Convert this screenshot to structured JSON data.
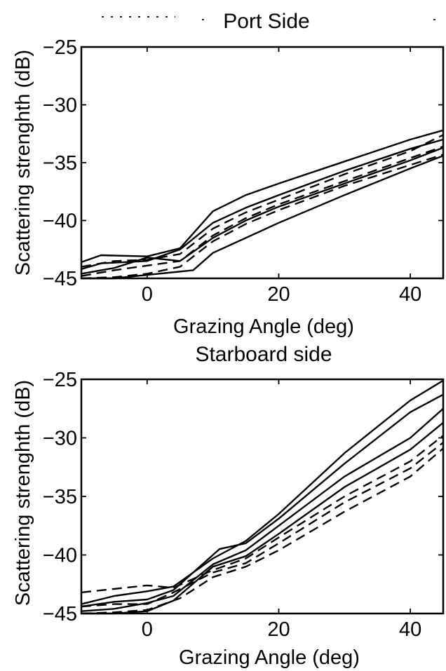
{
  "chart_data": [
    {
      "type": "line",
      "title": "Port Side",
      "xlabel": "Grazing Angle (deg)",
      "ylabel": "Scattering strenghth (dB)",
      "xlim": [
        -10,
        45
      ],
      "ylim": [
        -45,
        -25
      ],
      "xticks": [
        "0",
        "20",
        "40"
      ],
      "yticks": [
        "−25",
        "−30",
        "−35",
        "−40",
        "−45"
      ],
      "xtick_values": [
        0,
        20,
        40
      ],
      "ytick_values": [
        -25,
        -30,
        -35,
        -40,
        -45
      ],
      "grid": false,
      "series": [
        {
          "style": "solid",
          "x": [
            -10,
            -7,
            0,
            5,
            10,
            15,
            20,
            30,
            40,
            45
          ],
          "y": [
            -43.6,
            -43.0,
            -43.1,
            -42.4,
            -39.2,
            -37.8,
            -36.8,
            -34.9,
            -33.0,
            -32.2
          ]
        },
        {
          "style": "solid",
          "x": [
            -10,
            -7,
            0,
            5,
            10,
            15,
            20,
            30,
            40,
            45
          ],
          "y": [
            -44.2,
            -43.7,
            -43.5,
            -42.5,
            -40.2,
            -38.9,
            -37.8,
            -35.7,
            -33.8,
            -33.0
          ]
        },
        {
          "style": "solid",
          "x": [
            -10,
            -5,
            0,
            5,
            10,
            15,
            20,
            30,
            40,
            45
          ],
          "y": [
            -44.6,
            -44.1,
            -43.2,
            -43.5,
            -41.5,
            -40.0,
            -38.8,
            -36.8,
            -34.8,
            -33.7
          ]
        },
        {
          "style": "solid",
          "x": [
            -10,
            -5,
            0,
            7,
            10,
            15,
            20,
            30,
            40,
            45
          ],
          "y": [
            -45.0,
            -45.0,
            -44.7,
            -44.3,
            -42.8,
            -41.5,
            -40.2,
            -37.8,
            -35.5,
            -34.4
          ]
        },
        {
          "style": "dashed",
          "x": [
            -10,
            -5,
            0,
            5,
            10,
            15,
            20,
            30,
            40,
            45
          ],
          "y": [
            -44.0,
            -43.5,
            -43.4,
            -42.9,
            -40.7,
            -39.3,
            -38.2,
            -36.0,
            -34.0,
            -32.6
          ]
        },
        {
          "style": "dashed",
          "x": [
            -10,
            -5,
            0,
            5,
            10,
            15,
            20,
            30,
            40,
            45
          ],
          "y": [
            -44.8,
            -44.3,
            -43.9,
            -43.5,
            -41.3,
            -39.8,
            -38.6,
            -36.6,
            -34.6,
            -33.6
          ]
        },
        {
          "style": "dashed",
          "x": [
            -10,
            -5,
            0,
            5,
            10,
            15,
            20,
            30,
            40,
            45
          ],
          "y": [
            -45.0,
            -44.9,
            -44.6,
            -44.0,
            -41.8,
            -40.3,
            -39.1,
            -37.0,
            -35.2,
            -34.3
          ]
        }
      ]
    },
    {
      "type": "line",
      "title": "Starboard side",
      "xlabel": "Grazing Angle (deg)",
      "ylabel": "Scattering strenghth (dB)",
      "xlim": [
        -10,
        45
      ],
      "ylim": [
        -45,
        -25
      ],
      "xticks": [
        "0",
        "20",
        "40"
      ],
      "yticks": [
        "−25",
        "−30",
        "−35",
        "−40",
        "−45"
      ],
      "xtick_values": [
        0,
        20,
        40
      ],
      "ytick_values": [
        -25,
        -30,
        -35,
        -40,
        -45
      ],
      "grid": false,
      "series": [
        {
          "style": "solid",
          "x": [
            -10,
            -5,
            0,
            4,
            10,
            15,
            20,
            30,
            40,
            45
          ],
          "y": [
            -44.2,
            -43.5,
            -43.1,
            -42.7,
            -40.3,
            -38.8,
            -36.5,
            -31.3,
            -26.8,
            -25.1
          ]
        },
        {
          "style": "solid",
          "x": [
            -10,
            -5,
            0,
            4,
            11,
            15,
            20,
            30,
            40,
            45
          ],
          "y": [
            -44.4,
            -44.0,
            -43.8,
            -43.0,
            -39.5,
            -39.0,
            -36.9,
            -32.2,
            -27.8,
            -26.3
          ]
        },
        {
          "style": "solid",
          "x": [
            -10,
            -5,
            0,
            4,
            10,
            15,
            20,
            30,
            40,
            45
          ],
          "y": [
            -44.8,
            -44.6,
            -44.1,
            -43.5,
            -40.8,
            -39.6,
            -37.5,
            -33.3,
            -30.0,
            -27.5
          ]
        },
        {
          "style": "solid",
          "x": [
            -10,
            -5,
            0,
            4,
            10,
            15,
            20,
            30,
            40,
            45
          ],
          "y": [
            -45.0,
            -45.0,
            -44.8,
            -43.9,
            -41.0,
            -40.1,
            -38.2,
            -34.2,
            -31.0,
            -28.7
          ]
        },
        {
          "style": "dashed",
          "x": [
            -10,
            -5,
            0,
            4,
            10,
            15,
            20,
            30,
            40,
            45
          ],
          "y": [
            -43.2,
            -42.9,
            -42.6,
            -42.8,
            -41.3,
            -40.3,
            -38.5,
            -35.0,
            -32.0,
            -29.8
          ]
        },
        {
          "style": "dashed",
          "x": [
            -10,
            -5,
            0,
            4,
            10,
            15,
            20,
            30,
            40,
            45
          ],
          "y": [
            -44.4,
            -44.2,
            -44.2,
            -43.2,
            -41.5,
            -40.7,
            -39.0,
            -35.5,
            -32.6,
            -30.4
          ]
        },
        {
          "style": "dashed",
          "x": [
            -10,
            -5,
            0,
            5,
            10,
            15,
            20,
            30,
            40,
            45
          ],
          "y": [
            -45.0,
            -44.9,
            -44.7,
            -43.7,
            -41.9,
            -41.0,
            -39.6,
            -36.3,
            -33.3,
            -30.9
          ]
        }
      ]
    }
  ]
}
